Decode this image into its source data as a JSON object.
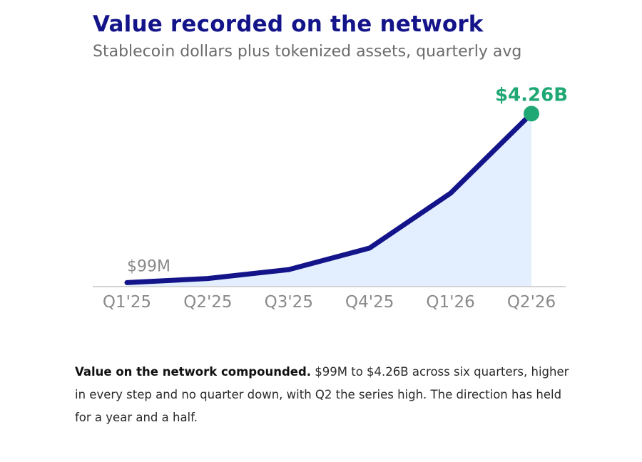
{
  "header": {
    "title": "Value recorded on the network",
    "subtitle": "Stablecoin dollars plus tokenized assets, quarterly avg"
  },
  "chart_data": {
    "type": "area",
    "categories": [
      "Q1'25",
      "Q2'25",
      "Q3'25",
      "Q4'25",
      "Q1'26",
      "Q2'26"
    ],
    "values": [
      0.099,
      0.2,
      0.42,
      0.95,
      2.3,
      4.26
    ],
    "value_unit": "billion USD",
    "first_label": "$99M",
    "last_label": "$4.26B",
    "ylim": [
      0,
      4.6
    ],
    "grid": false,
    "legend": "none",
    "colors": {
      "line": "#14148a",
      "fill": "#e3efff",
      "highlight": "#1fa874",
      "axis": "#d4d4d4"
    }
  },
  "note": {
    "lead": "Value on the network compounded.",
    "body": " $99M to $4.26B across six quarters, higher in every step and no quarter down, with Q2 the series high. The direction has held for a year and a half."
  }
}
